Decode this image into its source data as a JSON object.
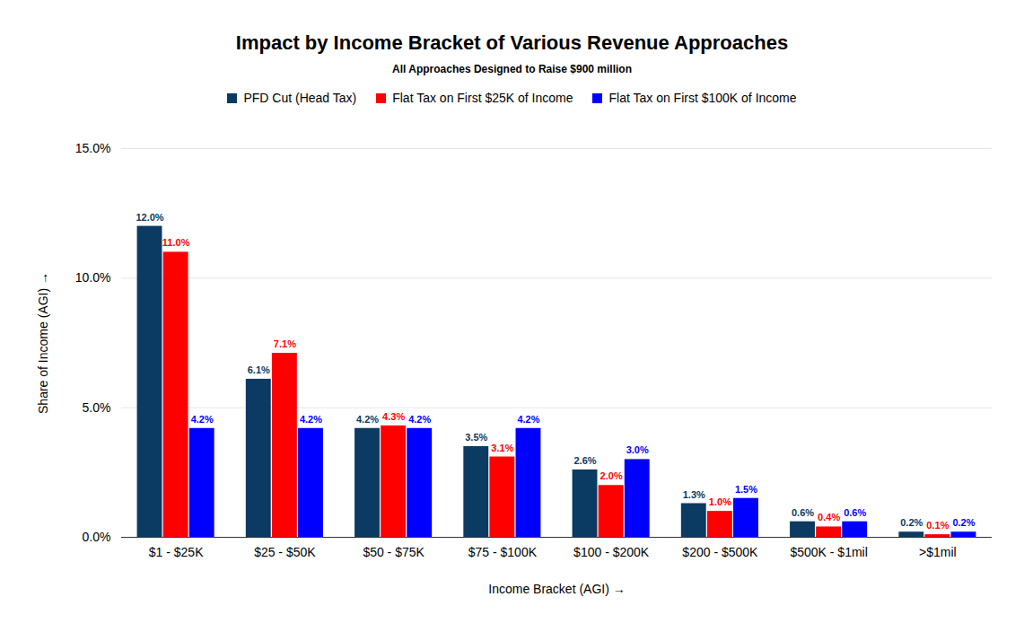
{
  "chart_data": {
    "type": "bar",
    "title": "Impact by Income Bracket of Various Revenue Approaches",
    "subtitle": "All Approaches Designed to Raise $900 million",
    "x_label": "Income Bracket (AGI)",
    "y_label": "Share of Income (AGI)",
    "categories": [
      "$1 - $25K",
      "$25 - $50K",
      "$50 - $75K",
      "$75 - $100K",
      "$100 - $200K",
      "$200 - $500K",
      "$500K - $1mil",
      ">$1mil"
    ],
    "series": [
      {
        "name": "PFD Cut (Head Tax)",
        "color": "#0b3a62",
        "values": [
          12.0,
          6.1,
          4.2,
          3.5,
          2.6,
          1.3,
          0.6,
          0.2
        ],
        "value_labels": [
          "12.0%",
          "6.1%",
          "4.2%",
          "3.5%",
          "2.6%",
          "1.3%",
          "0.6%",
          "0.2%"
        ]
      },
      {
        "name": "Flat Tax on First $25K of Income",
        "color": "#ff0000",
        "values": [
          11.0,
          7.1,
          4.3,
          3.1,
          2.0,
          1.0,
          0.4,
          0.1
        ],
        "value_labels": [
          "11.0%",
          "7.1%",
          "4.3%",
          "3.1%",
          "2.0%",
          "1.0%",
          "0.4%",
          "0.1%"
        ]
      },
      {
        "name": "Flat Tax on First $100K of Income",
        "color": "#0000ff",
        "values": [
          4.2,
          4.2,
          4.2,
          4.2,
          3.0,
          1.5,
          0.6,
          0.2
        ],
        "value_labels": [
          "4.2%",
          "4.2%",
          "4.2%",
          "4.2%",
          "3.0%",
          "1.5%",
          "0.6%",
          "0.2%"
        ]
      }
    ],
    "ylim": [
      0,
      15
    ],
    "yticks": [
      {
        "value": 0,
        "label": "0.0%"
      },
      {
        "value": 5,
        "label": "5.0%"
      },
      {
        "value": 10,
        "label": "10.0%"
      },
      {
        "value": 15,
        "label": "15.0%"
      }
    ],
    "grid": true,
    "legend": "top",
    "data_labels": true
  }
}
